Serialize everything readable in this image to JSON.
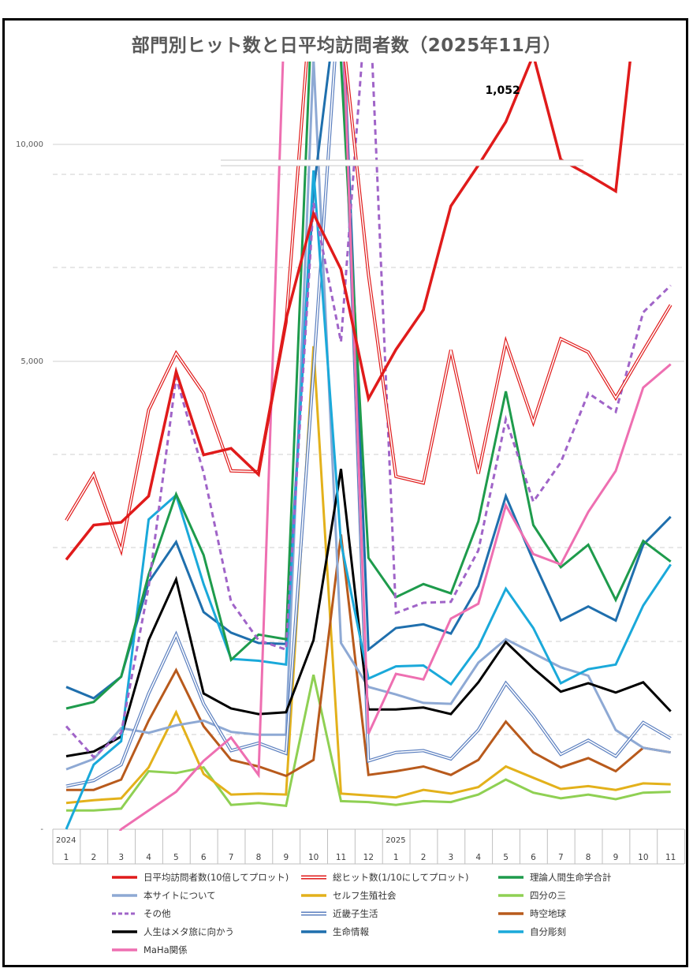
{
  "title": "部門別ヒット数と日平均訪問者数（2025年11月）",
  "chart_data": {
    "type": "line",
    "title": "部門別ヒット数と日平均訪問者数（2025年11月）",
    "y_ticks": [
      {
        "value": 10000,
        "label": "10,000"
      },
      {
        "value": 5000,
        "label": "5,000"
      },
      {
        "value": 0,
        "label": "-"
      }
    ],
    "ylim": [
      0,
      12500
    ],
    "grid": true,
    "legend_position": "bottom",
    "annotation": {
      "label": "1,052",
      "x_index": 16
    },
    "year_labels": [
      {
        "label": "2024",
        "x_index": 0
      },
      {
        "label": "2025",
        "x_index": 12
      }
    ],
    "x": [
      "1",
      "2",
      "3",
      "4",
      "5",
      "6",
      "7",
      "8",
      "9",
      "10",
      "11",
      "12",
      "1",
      "2",
      "3",
      "4",
      "5",
      "6",
      "7",
      "8",
      "9",
      "10",
      "11"
    ],
    "series": [
      {
        "name": "日平均訪問者数(10倍してプロット)",
        "color": "#e01b1b",
        "style": "solid-thick",
        "values": [
          2880,
          3250,
          3280,
          3560,
          4890,
          4000,
          4070,
          3790,
          5970,
          8400,
          7120,
          4600,
          5270,
          6190,
          8580,
          9520,
          10520,
          12060,
          9650,
          9300,
          8920,
          14660,
          12400
        ]
      },
      {
        "name": "総ヒット数(1/10にしてプロット)",
        "color": "#e01b1b",
        "style": "double",
        "values": [
          3300,
          3790,
          2980,
          4480,
          5190,
          4660,
          3830,
          3820,
          5900,
          14000,
          12900,
          7000,
          3770,
          3700,
          5260,
          3800,
          5450,
          4350,
          5520,
          5210,
          4610,
          5240,
          6300
        ]
      },
      {
        "name": "理論人間生命学合計",
        "color": "#1e9b4c",
        "style": "solid",
        "values": [
          1290,
          1360,
          1630,
          2720,
          3580,
          2930,
          1810,
          2080,
          2030,
          14000,
          11900,
          2900,
          2480,
          2620,
          2520,
          3290,
          4680,
          3250,
          2800,
          3040,
          2450,
          3080,
          2860
        ]
      },
      {
        "name": "本サイトについて",
        "color": "#8ea9d4",
        "style": "solid",
        "values": [
          640,
          750,
          1080,
          1030,
          1110,
          1160,
          1040,
          1010,
          1010,
          12000,
          1990,
          1520,
          1440,
          1350,
          1340,
          1780,
          2030,
          1880,
          1730,
          1640,
          1060,
          870,
          820
        ]
      },
      {
        "name": "セルフ生殖社会",
        "color": "#e3b11b",
        "style": "solid",
        "values": [
          280,
          310,
          330,
          660,
          1250,
          590,
          370,
          380,
          370,
          5350,
          380,
          360,
          340,
          420,
          380,
          450,
          670,
          550,
          430,
          460,
          420,
          490,
          480
        ]
      },
      {
        "name": "四分の三",
        "color": "#8fd053",
        "style": "solid",
        "values": [
          200,
          200,
          220,
          620,
          600,
          660,
          260,
          280,
          250,
          1650,
          300,
          290,
          260,
          300,
          290,
          370,
          530,
          390,
          330,
          370,
          320,
          390,
          400
        ]
      },
      {
        "name": "その他",
        "color": "#a064c8",
        "style": "dashed",
        "values": [
          1100,
          770,
          1030,
          2590,
          4830,
          3810,
          2430,
          2020,
          1920,
          8650,
          5450,
          14000,
          2310,
          2420,
          2430,
          2980,
          4380,
          3500,
          3920,
          4660,
          4460,
          6130,
          6750
        ]
      },
      {
        "name": "近畿子生活",
        "color": "#5b7fbf",
        "style": "double",
        "values": [
          460,
          520,
          690,
          1450,
          2080,
          1340,
          840,
          920,
          810,
          4900,
          14000,
          730,
          820,
          840,
          750,
          1060,
          1560,
          1210,
          800,
          950,
          780,
          1140,
          970
        ]
      },
      {
        "name": "時空地球",
        "color": "#b85a1c",
        "style": "solid",
        "values": [
          420,
          420,
          530,
          1160,
          1700,
          1100,
          740,
          670,
          570,
          740,
          3150,
          580,
          620,
          670,
          580,
          740,
          1150,
          820,
          660,
          760,
          620,
          870,
          820
        ]
      },
      {
        "name": "人生はメタ旅に向かう",
        "color": "#000000",
        "style": "solid",
        "values": [
          780,
          830,
          990,
          2020,
          2670,
          1450,
          1290,
          1230,
          1250,
          2020,
          3850,
          1280,
          1280,
          1300,
          1230,
          1570,
          2000,
          1720,
          1470,
          1560,
          1460,
          1570,
          1260
        ]
      },
      {
        "name": "生命情報",
        "color": "#1f6fad",
        "style": "solid",
        "values": [
          1520,
          1400,
          1630,
          2640,
          3070,
          2320,
          2100,
          1990,
          1980,
          8920,
          14000,
          1920,
          2150,
          2190,
          2090,
          2600,
          3560,
          2870,
          2230,
          2380,
          2230,
          3040,
          3340
        ]
      },
      {
        "name": "自分彫刻",
        "color": "#1aa9da",
        "style": "solid",
        "values": [
          0,
          690,
          940,
          3310,
          3570,
          2620,
          1820,
          1800,
          1760,
          9400,
          3060,
          1610,
          1740,
          1750,
          1550,
          1950,
          2570,
          2150,
          1560,
          1710,
          1760,
          2390,
          2830
        ]
      },
      {
        "name": "MaHa関係",
        "color": "#ee6fb1",
        "style": "solid",
        "values": [
          -1000,
          -500,
          0,
          200,
          400,
          730,
          980,
          580,
          14000,
          14000,
          14000,
          1020,
          1660,
          1600,
          2250,
          2410,
          3460,
          2940,
          2830,
          3390,
          3830,
          4720,
          4970
        ]
      }
    ]
  },
  "colors": {
    "grid": "#d9d9d9",
    "axis": "#bfbfbf",
    "frame": "#000000"
  }
}
